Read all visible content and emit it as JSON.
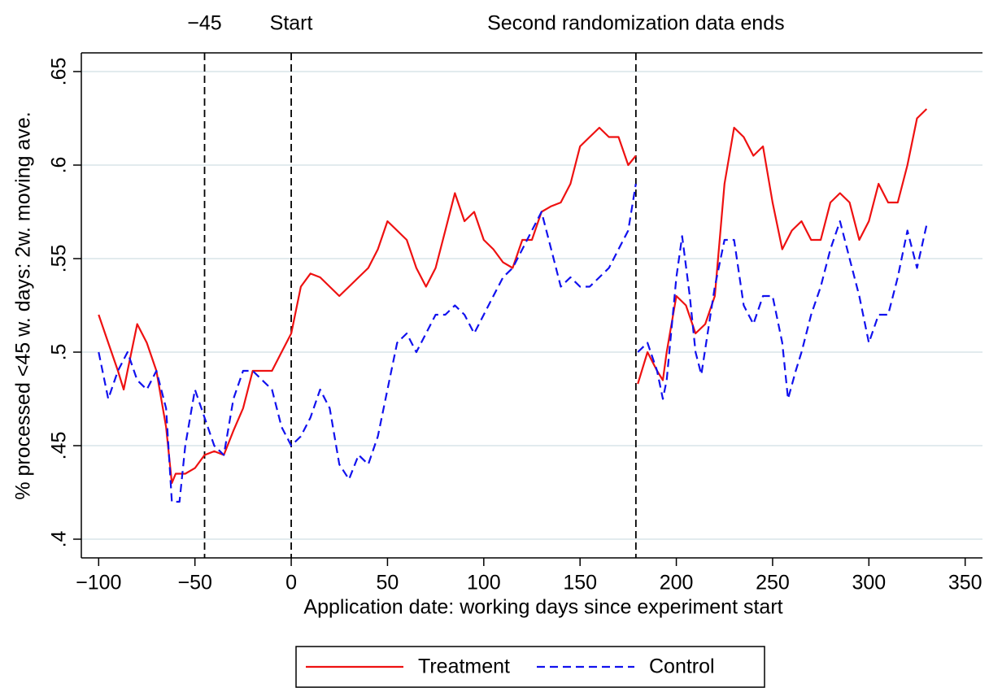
{
  "chart_data": {
    "type": "line",
    "ylabel": "% processed <45 w. days: 2w. moving ave.",
    "xlabel": "Application date: working days since experiment start",
    "xlim": [
      -109,
      359
    ],
    "ylim": [
      0.39,
      0.66
    ],
    "xticks": [
      {
        "value": -100,
        "label": "−100"
      },
      {
        "value": -50,
        "label": "−50"
      },
      0,
      50,
      100,
      150,
      200,
      250,
      300,
      350
    ],
    "yticks": [
      {
        "value": 0.4,
        "label": ".4"
      },
      {
        "value": 0.45,
        "label": ".45"
      },
      {
        "value": 0.5,
        "label": ".5"
      },
      {
        "value": 0.55,
        "label": ".55"
      },
      {
        "value": 0.6,
        "label": ".6"
      },
      {
        "value": 0.65,
        "label": ".65"
      }
    ],
    "grid": true,
    "vlines": [
      {
        "x": -45,
        "label": "−45"
      },
      {
        "x": 0,
        "label": "Start"
      },
      {
        "x": 179,
        "label": "Second randomization data ends"
      }
    ],
    "legend": "bottom",
    "series": [
      {
        "name": "Treatment",
        "color": "#ee1111",
        "dash": false,
        "x": [
          -100,
          -95,
          -90,
          -87,
          -85,
          -80,
          -75,
          -70,
          -65,
          -62,
          -60,
          -55,
          -50,
          -45,
          -40,
          -35,
          -30,
          -25,
          -20,
          -15,
          -10,
          -5,
          0,
          5,
          10,
          15,
          20,
          25,
          30,
          35,
          40,
          45,
          50,
          55,
          60,
          65,
          70,
          75,
          80,
          85,
          90,
          95,
          100,
          105,
          110,
          115,
          120,
          125,
          130,
          135,
          140,
          145,
          150,
          155,
          160,
          165,
          170,
          175,
          179,
          179.5,
          180,
          185,
          190,
          193,
          195,
          200,
          205,
          210,
          215,
          220,
          225,
          230,
          235,
          240,
          245,
          250,
          255,
          260,
          265,
          270,
          275,
          280,
          285,
          290,
          295,
          300,
          305,
          310,
          315,
          320,
          325,
          330
        ],
        "values": [
          0.52,
          0.505,
          0.49,
          0.48,
          0.49,
          0.515,
          0.505,
          0.49,
          0.46,
          0.43,
          0.435,
          0.435,
          0.438,
          0.445,
          0.447,
          0.445,
          0.458,
          0.47,
          0.49,
          0.49,
          0.49,
          0.5,
          0.51,
          0.535,
          0.542,
          0.54,
          0.535,
          0.53,
          0.535,
          0.54,
          0.545,
          0.555,
          0.57,
          0.565,
          0.56,
          0.545,
          0.535,
          0.545,
          0.565,
          0.585,
          0.57,
          0.575,
          0.56,
          0.555,
          0.548,
          0.545,
          0.56,
          0.56,
          0.575,
          0.578,
          0.58,
          0.59,
          0.61,
          0.615,
          0.62,
          0.615,
          0.615,
          0.6,
          0.605,
          null,
          0.483,
          0.5,
          0.49,
          0.485,
          0.5,
          0.53,
          0.525,
          0.51,
          0.515,
          0.53,
          0.59,
          0.62,
          0.615,
          0.605,
          0.61,
          0.58,
          0.555,
          0.565,
          0.57,
          0.56,
          0.56,
          0.58,
          0.585,
          0.58,
          0.56,
          0.57,
          0.59,
          0.58,
          0.58,
          0.6,
          0.625,
          0.63
        ]
      },
      {
        "name": "Control",
        "color": "#1111ee",
        "dash": true,
        "x": [
          -100,
          -95,
          -90,
          -85,
          -80,
          -75,
          -70,
          -65,
          -62,
          -58,
          -55,
          -50,
          -45,
          -40,
          -35,
          -30,
          -25,
          -20,
          -15,
          -10,
          -5,
          0,
          5,
          10,
          15,
          20,
          25,
          30,
          35,
          40,
          45,
          50,
          55,
          60,
          65,
          70,
          75,
          80,
          85,
          90,
          95,
          100,
          105,
          110,
          115,
          120,
          125,
          130,
          135,
          140,
          145,
          150,
          155,
          160,
          165,
          170,
          175,
          179,
          179.5,
          180,
          185,
          190,
          193,
          195,
          200,
          203,
          207,
          210,
          213,
          217,
          220,
          225,
          230,
          235,
          240,
          245,
          250,
          255,
          258,
          262,
          265,
          270,
          275,
          280,
          285,
          290,
          295,
          300,
          305,
          310,
          315,
          320,
          325,
          330
        ],
        "values": [
          0.5,
          0.475,
          0.49,
          0.5,
          0.485,
          0.48,
          0.49,
          0.47,
          0.42,
          0.42,
          0.45,
          0.48,
          0.465,
          0.45,
          0.445,
          0.475,
          0.49,
          0.49,
          0.485,
          0.48,
          0.46,
          0.45,
          0.455,
          0.465,
          0.48,
          0.47,
          0.44,
          0.432,
          0.445,
          0.44,
          0.455,
          0.48,
          0.505,
          0.51,
          0.5,
          0.51,
          0.52,
          0.52,
          0.525,
          0.52,
          0.51,
          0.52,
          0.53,
          0.54,
          0.545,
          0.555,
          0.565,
          0.575,
          0.555,
          0.535,
          0.54,
          0.535,
          0.535,
          0.54,
          0.545,
          0.555,
          0.565,
          0.59,
          null,
          0.5,
          0.505,
          0.49,
          0.475,
          0.485,
          0.54,
          0.562,
          0.53,
          0.5,
          0.488,
          0.515,
          0.535,
          0.56,
          0.56,
          0.525,
          0.515,
          0.53,
          0.53,
          0.505,
          0.475,
          0.49,
          0.5,
          0.52,
          0.535,
          0.555,
          0.57,
          0.55,
          0.53,
          0.505,
          0.52,
          0.52,
          0.54,
          0.565,
          0.545,
          0.568
        ]
      }
    ]
  }
}
